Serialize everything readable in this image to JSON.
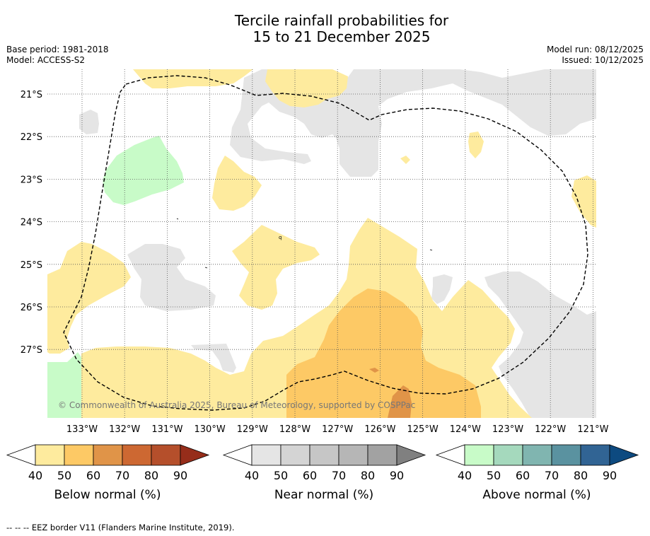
{
  "title_line1": "Tercile rainfall probabilities for",
  "title_line2": "15 to 21 December 2025",
  "meta": {
    "base_period": "Base period: 1981-2018",
    "model": "Model: ACCESS-S2",
    "model_run": "Model run: 08/12/2025",
    "issued": "Issued: 10/12/2025"
  },
  "map": {
    "lon_labels": [
      "133°W",
      "132°W",
      "131°W",
      "130°W",
      "129°W",
      "128°W",
      "127°W",
      "126°W",
      "125°W",
      "124°W",
      "123°W",
      "122°W",
      "121°W"
    ],
    "lat_labels": [
      "21°S",
      "22°S",
      "23°S",
      "24°S",
      "25°S",
      "26°S",
      "27°S"
    ],
    "copyright": "© Commonwealth of Australia 2025, Bureau of Meteorology, supported by COSPPac",
    "island_label": "q"
  },
  "colorbars": [
    {
      "label": "Below normal (%)",
      "ticks": [
        "40",
        "50",
        "60",
        "70",
        "80",
        "90"
      ],
      "colors": [
        "#feeb9e",
        "#fdc965",
        "#e09448",
        "#cd6832",
        "#b54f2b",
        "#962d1a"
      ]
    },
    {
      "label": "Near normal (%)",
      "ticks": [
        "40",
        "50",
        "60",
        "70",
        "80",
        "90"
      ],
      "colors": [
        "#e5e5e5",
        "#d4d4d4",
        "#c6c6c6",
        "#b6b6b6",
        "#a2a2a2",
        "#808080"
      ]
    },
    {
      "label": "Above normal (%)",
      "ticks": [
        "40",
        "50",
        "60",
        "70",
        "80",
        "90"
      ],
      "colors": [
        "#c8fbc8",
        "#a5d9bd",
        "#80b5b0",
        "#5a92a0",
        "#316494",
        "#0d4a80"
      ]
    }
  ],
  "footnote": "--  --  -- EEZ border V11 (Flanders Marine Institute, 2019)."
}
